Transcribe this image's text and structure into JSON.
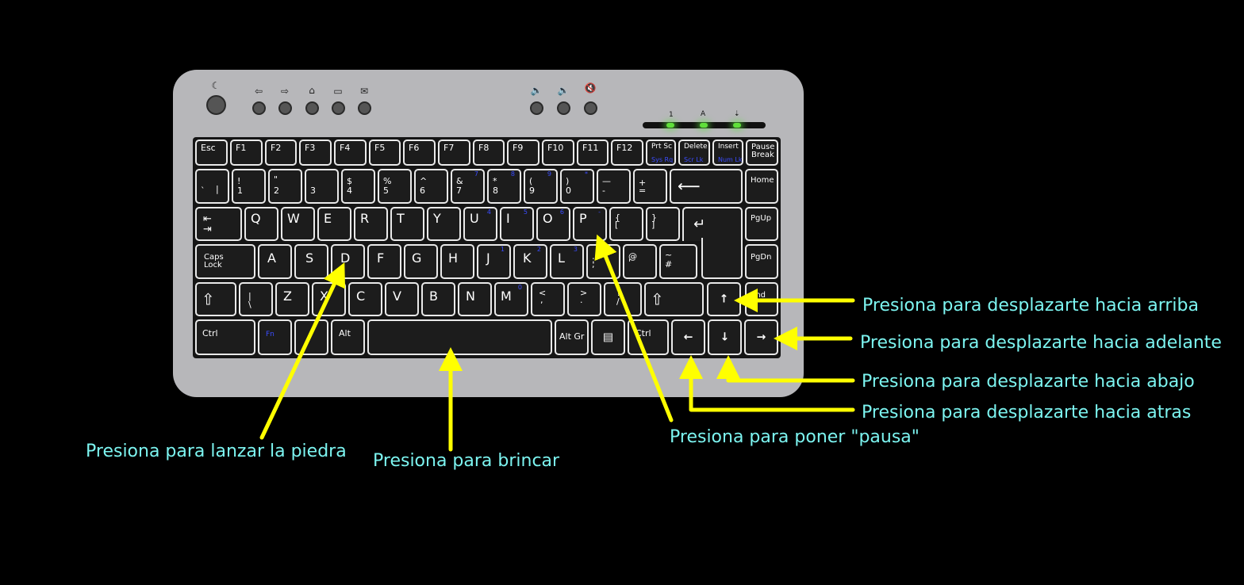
{
  "keyboard": {
    "media": {
      "sleep_icon": "moon-icon",
      "back_icon": "arrow-left-outline-icon",
      "forward_icon": "arrow-right-outline-icon",
      "home_icon": "home-icon",
      "folder_icon": "folder-icon",
      "mail_icon": "mail-icon",
      "vol_down_icon": "volume-down-icon",
      "vol_up_icon": "volume-up-icon",
      "mute_icon": "mute-icon"
    },
    "indicators": {
      "num": "1",
      "caps": "A",
      "scroll": "⇣"
    },
    "led_color": "#5fe03a",
    "keys": {
      "esc": "Esc",
      "f1": "F1",
      "f2": "F2",
      "f3": "F3",
      "f4": "F4",
      "f5": "F5",
      "f6": "F6",
      "f7": "F7",
      "f8": "F8",
      "f9": "F9",
      "f10": "F10",
      "f11": "F11",
      "f12": "F12",
      "prtsc": "Prt Sc",
      "prtsc_sub": "Sys Rq",
      "delete": "Delete",
      "delete_sub": "Scr Lk",
      "insert": "Insert",
      "insert_sub": "Num Lk",
      "pause_1": "Pause",
      "pause_2": "Break",
      "grave_top": "`",
      "grave_bot": "|",
      "n1_top": "!",
      "n1_bot": "1",
      "n2_top": "\"",
      "n2_bot": "2",
      "n3_bot": "3",
      "n4_top": "$",
      "n4_bot": "4",
      "n5_top": "%",
      "n5_bot": "5",
      "n6_top": "^",
      "n6_bot": "6",
      "n7_top": "&",
      "n7_bot": "7",
      "n7_sub": "7",
      "n8_top": "*",
      "n8_bot": "8",
      "n8_sub": "8",
      "n9_top": "(",
      "n9_bot": "9",
      "n9_sub": "9",
      "n0_top": ")",
      "n0_bot": "0",
      "n0_sub": "*",
      "minus_top": "—",
      "minus_bot": "-",
      "plus_top": "+",
      "plus_bot": "=",
      "home": "Home",
      "q": "Q",
      "w": "W",
      "e": "E",
      "r": "R",
      "t": "T",
      "y": "Y",
      "u": "U",
      "u_sub": "4",
      "i": "I",
      "i_sub": "5",
      "o": "O",
      "o_sub": "6",
      "p": "P",
      "p_sub": "-",
      "lbr_top": "{",
      "lbr_bot": "[",
      "rbr_top": "}",
      "rbr_bot": "]",
      "pgup": "PgUp",
      "caps_1": "Caps",
      "caps_2": "Lock",
      "a": "A",
      "s": "S",
      "d": "D",
      "f": "F",
      "g": "G",
      "h": "H",
      "j": "J",
      "j_sub": "1",
      "k": "K",
      "k_sub": "2",
      "l": "L",
      "l_sub": "3",
      "semi_top": ":",
      "semi_bot": ";",
      "semi_sub": "+",
      "at_top": "@",
      "at_bot": "'",
      "hash_top": "~",
      "hash_bot": "#",
      "pgdn": "PgDn",
      "pipe_top": "|",
      "pipe_bot": "\\",
      "z": "Z",
      "x": "X",
      "c": "C",
      "v": "V",
      "b": "B",
      "n": "N",
      "m": "M",
      "m_sub": "0",
      "comma_top": "<",
      "comma_bot": ",",
      "period_top": ">",
      "period_bot": ".",
      "slash_top": "?",
      "slash_bot": "/",
      "end": "End",
      "ctrl": "Ctrl",
      "fn": "Fn",
      "alt": "Alt",
      "altgr": "Alt Gr",
      "ctrl_r": "Ctrl",
      "up": "↑",
      "down": "↓",
      "left": "←",
      "right": "→"
    }
  },
  "annotations": {
    "arrow_color": "#ffff00",
    "label_color": "#7cf4f0",
    "up": "Presiona para desplazarte hacia arriba",
    "forward": "Presiona para desplazarte hacia adelante",
    "down": "Presiona para desplazarte hacia abajo",
    "back": "Presiona para desplazarte hacia atras",
    "pause": "Presiona para poner \"pausa\"",
    "throw": "Presiona para lanzar la piedra",
    "jump": "Presiona para brincar"
  }
}
